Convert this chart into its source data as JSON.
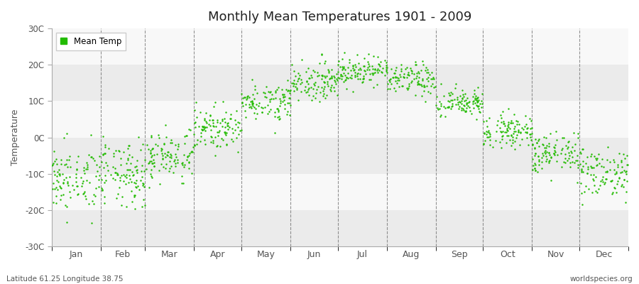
{
  "title": "Monthly Mean Temperatures 1901 - 2009",
  "ylabel": "Temperature",
  "dot_color": "#22bb00",
  "dot_size": 3,
  "ylim": [
    -30,
    30
  ],
  "yticks": [
    -30,
    -20,
    -10,
    0,
    10,
    20,
    30
  ],
  "ytick_labels": [
    "-30C",
    "-20C",
    "-10C",
    "0C",
    "10C",
    "20C",
    "30C"
  ],
  "month_labels": [
    "Jan",
    "Feb",
    "Mar",
    "Apr",
    "May",
    "Jun",
    "Jul",
    "Aug",
    "Sep",
    "Oct",
    "Nov",
    "Dec"
  ],
  "legend_label": "Mean Temp",
  "bg_color": "#ffffff",
  "plot_bg_color": "#ffffff",
  "band_color_even": "#ebebeb",
  "band_color_odd": "#f8f8f8",
  "subtitle_left": "Latitude 61.25 Longitude 38.75",
  "subtitle_right": "worldspecies.org",
  "dashed_line_color": "#777777",
  "monthly_means": [
    -11.5,
    -10.5,
    -5.0,
    2.5,
    10.0,
    15.5,
    18.5,
    16.0,
    9.5,
    2.0,
    -4.5,
    -9.5
  ],
  "monthly_stds": [
    4.5,
    4.5,
    3.5,
    2.8,
    2.5,
    2.5,
    2.0,
    2.2,
    2.0,
    2.2,
    2.8,
    3.5
  ],
  "years": 109
}
